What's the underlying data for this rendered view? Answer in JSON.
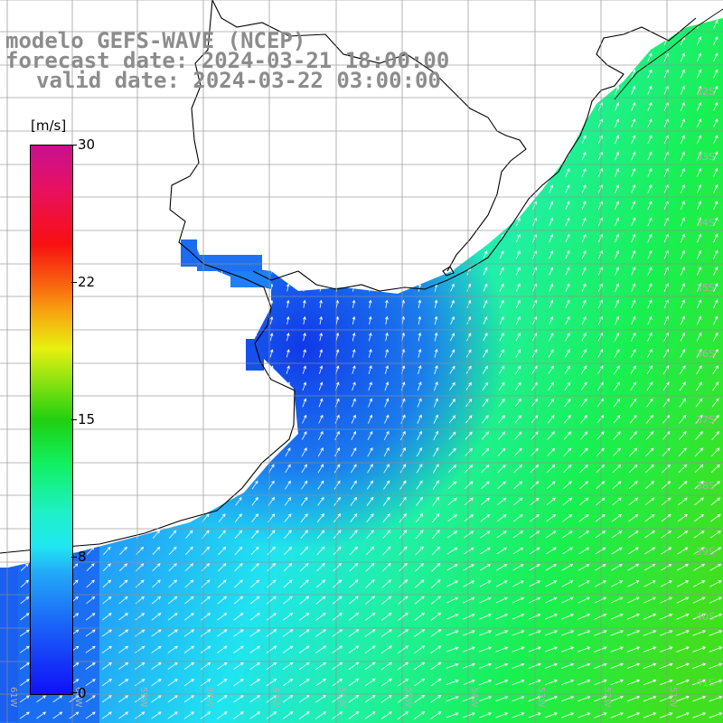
{
  "title": {
    "line1": "modelo GEFS-WAVE (NCEP)",
    "line2": "forecast date: 2024-03-21 18:00:00",
    "line3": "valid date: 2024-03-22 03:00:00"
  },
  "colorbar": {
    "unit": "[m/s]",
    "ticks": [
      {
        "label": "30",
        "value": 30
      },
      {
        "label": "22",
        "value": 22
      },
      {
        "label": "15",
        "value": 15
      },
      {
        "label": "8",
        "value": 8
      },
      {
        "label": "0",
        "value": 0
      }
    ]
  },
  "map": {
    "lat_labels": [
      "32S",
      "33S",
      "34S",
      "35S",
      "36S",
      "37S",
      "38S",
      "39S",
      "40S",
      "41S"
    ],
    "lon_labels": [
      "61W",
      "60W",
      "59W",
      "58W",
      "57W",
      "56W",
      "55W",
      "54W",
      "53W",
      "52W",
      "51W"
    ],
    "colors": {
      "land": "#ffffff",
      "coast": "#000000",
      "grid": "#909090",
      "arrows": "#ffffff",
      "label_gray": "#b0b0b0"
    }
  }
}
